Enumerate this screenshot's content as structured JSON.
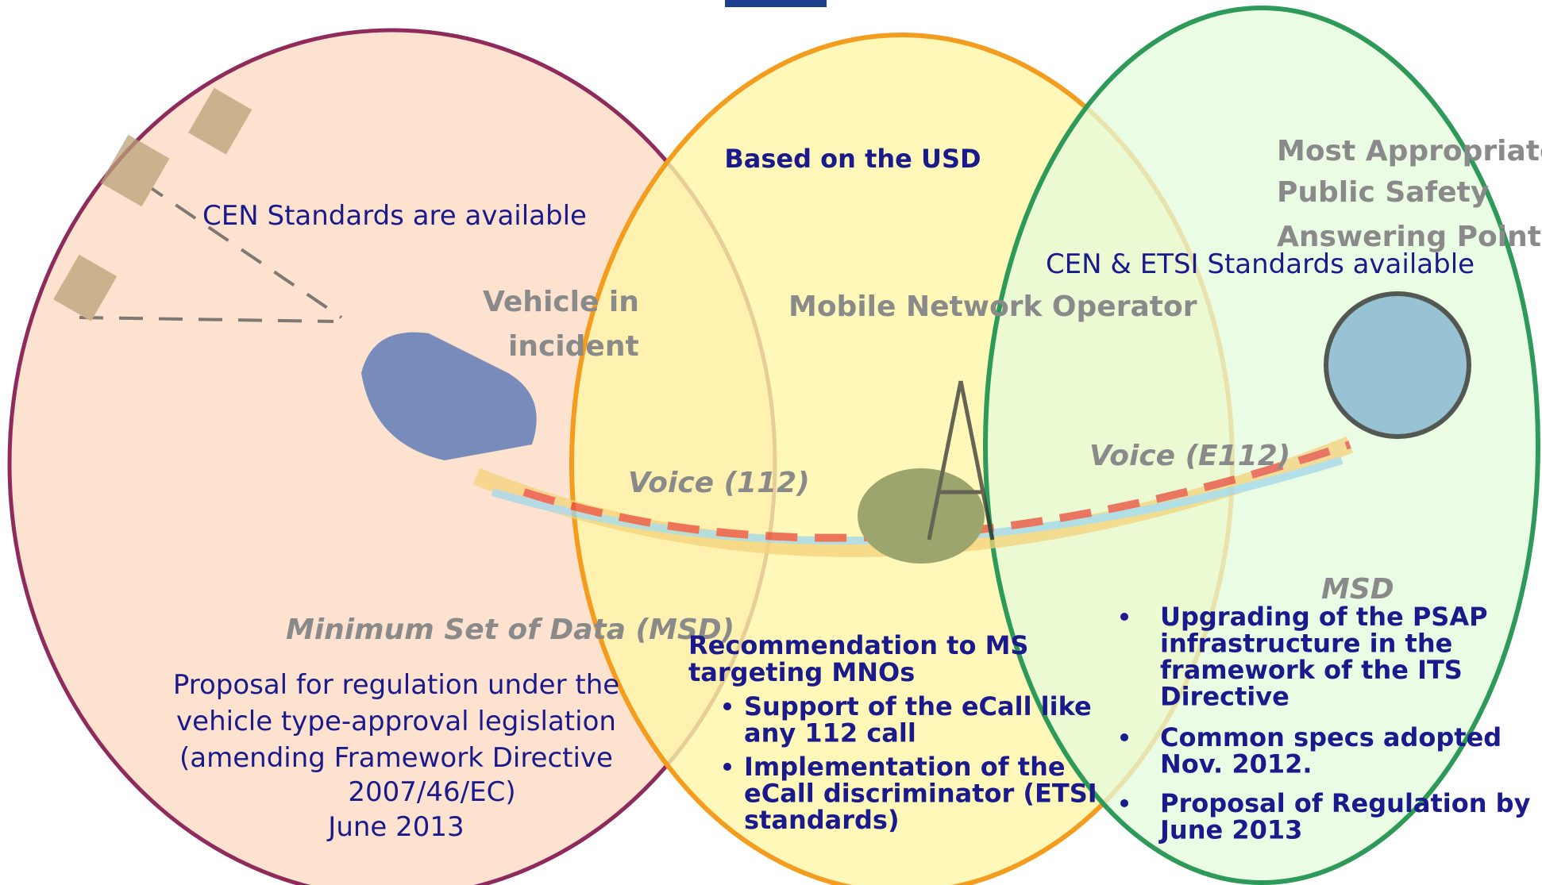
{
  "illustration": {
    "vehicle_label": [
      "Vehicle in",
      "incident"
    ],
    "operator_label": "Mobile Network Operator",
    "psap_label": [
      "Most Appropriate",
      "Public Safety",
      "Answering Point"
    ],
    "voice_112": "Voice (112)",
    "voice_e112": "Voice (E112)",
    "msd": "MSD",
    "minimum_set": "Minimum Set of Data (MSD)"
  },
  "circles": [
    {
      "heading": "CEN Standards are available",
      "body": [
        "Proposal for regulation under the",
        "vehicle type-approval legislation",
        "(amending Framework Directive",
        "2007/46/EC)"
      ],
      "date": "June 2013"
    },
    {
      "heading": "Based on the USD",
      "title": [
        "Recommendation to MS",
        "targeting MNOs"
      ],
      "bullets": [
        [
          "Support of the eCall like",
          "any 112 call"
        ],
        [
          "Implementation of the",
          "eCall discriminator  (ETSI",
          "standards)"
        ]
      ]
    },
    {
      "heading": "CEN & ETSI Standards available",
      "bullets": [
        [
          "Upgrading of the PSAP",
          "infrastructure in the",
          "framework of the ITS",
          "Directive"
        ],
        [
          "Common specs adopted",
          "Nov. 2012."
        ],
        [
          "Proposal of Regulation by",
          "June 2013"
        ]
      ]
    }
  ]
}
